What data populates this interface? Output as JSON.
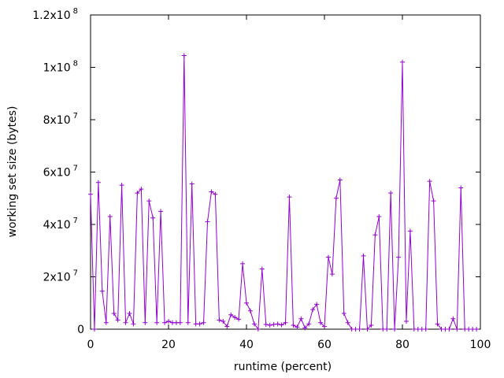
{
  "chart_data": {
    "type": "line",
    "xlabel": "runtime (percent)",
    "ylabel": "working set size (bytes)",
    "xlim": [
      0,
      100
    ],
    "ylim": [
      0,
      120000000
    ],
    "grid": false,
    "legend": "none",
    "x_ticks": [
      {
        "value": 0,
        "label": "0"
      },
      {
        "value": 20,
        "label": "20"
      },
      {
        "value": 40,
        "label": "40"
      },
      {
        "value": 60,
        "label": "60"
      },
      {
        "value": 80,
        "label": "80"
      },
      {
        "value": 100,
        "label": "100"
      }
    ],
    "y_ticks": [
      {
        "value": 0,
        "mantissa": "0",
        "exponent": ""
      },
      {
        "value": 20000000,
        "mantissa": "2x10",
        "exponent": "7"
      },
      {
        "value": 40000000,
        "mantissa": "4x10",
        "exponent": "7"
      },
      {
        "value": 60000000,
        "mantissa": "6x10",
        "exponent": "7"
      },
      {
        "value": 80000000,
        "mantissa": "8x10",
        "exponent": "7"
      },
      {
        "value": 100000000,
        "mantissa": "1x10",
        "exponent": "8"
      },
      {
        "value": 120000000,
        "mantissa": "1.2x10",
        "exponent": "8"
      }
    ],
    "series": [
      {
        "color": "#9400d3",
        "marker": "plus",
        "points": [
          [
            0,
            51500000
          ],
          [
            1,
            0
          ],
          [
            2,
            56000000
          ],
          [
            3,
            14500000
          ],
          [
            4,
            2500000
          ],
          [
            5,
            43000000
          ],
          [
            6,
            6000000
          ],
          [
            7,
            3500000
          ],
          [
            8,
            55000000
          ],
          [
            9,
            2500000
          ],
          [
            10,
            6000000
          ],
          [
            11,
            2000000
          ],
          [
            12,
            52000000
          ],
          [
            13,
            53500000
          ],
          [
            14,
            2500000
          ],
          [
            15,
            49000000
          ],
          [
            16,
            42500000
          ],
          [
            17,
            2500000
          ],
          [
            18,
            45000000
          ],
          [
            19,
            2500000
          ],
          [
            20,
            3000000
          ],
          [
            21,
            2500000
          ],
          [
            22,
            2500000
          ],
          [
            23,
            2500000
          ],
          [
            24,
            104500000
          ],
          [
            25,
            2500000
          ],
          [
            26,
            55500000
          ],
          [
            27,
            2000000
          ],
          [
            28,
            2000000
          ],
          [
            29,
            2500000
          ],
          [
            30,
            41000000
          ],
          [
            31,
            52500000
          ],
          [
            32,
            51500000
          ],
          [
            33,
            3500000
          ],
          [
            34,
            3000000
          ],
          [
            35,
            1000000
          ],
          [
            36,
            5500000
          ],
          [
            37,
            4500000
          ],
          [
            38,
            3800000
          ],
          [
            39,
            25000000
          ],
          [
            40,
            10000000
          ],
          [
            41,
            7000000
          ],
          [
            42,
            2000000
          ],
          [
            43,
            0
          ],
          [
            44,
            23000000
          ],
          [
            45,
            1800000
          ],
          [
            46,
            1500000
          ],
          [
            47,
            1800000
          ],
          [
            48,
            2000000
          ],
          [
            49,
            1600000
          ],
          [
            50,
            2500000
          ],
          [
            51,
            50500000
          ],
          [
            52,
            1500000
          ],
          [
            53,
            800000
          ],
          [
            54,
            4000000
          ],
          [
            55,
            500000
          ],
          [
            56,
            2000000
          ],
          [
            57,
            7500000
          ],
          [
            58,
            9500000
          ],
          [
            59,
            2500000
          ],
          [
            60,
            1000000
          ],
          [
            61,
            27500000
          ],
          [
            62,
            21000000
          ],
          [
            63,
            50000000
          ],
          [
            64,
            57000000
          ],
          [
            65,
            6000000
          ],
          [
            66,
            2500000
          ],
          [
            67,
            0
          ],
          [
            68,
            0
          ],
          [
            69,
            0
          ],
          [
            70,
            28000000
          ],
          [
            71,
            0
          ],
          [
            72,
            1500000
          ],
          [
            73,
            36000000
          ],
          [
            74,
            43000000
          ],
          [
            75,
            0
          ],
          [
            76,
            0
          ],
          [
            77,
            52000000
          ],
          [
            78,
            0
          ],
          [
            79,
            27500000
          ],
          [
            80,
            102000000
          ],
          [
            81,
            3000000
          ],
          [
            82,
            37500000
          ],
          [
            83,
            0
          ],
          [
            84,
            0
          ],
          [
            85,
            0
          ],
          [
            86,
            0
          ],
          [
            87,
            56500000
          ],
          [
            88,
            49000000
          ],
          [
            89,
            2000000
          ],
          [
            90,
            0
          ],
          [
            91,
            0
          ],
          [
            92,
            0
          ],
          [
            93,
            4000000
          ],
          [
            94,
            0
          ],
          [
            95,
            54000000
          ],
          [
            96,
            0
          ],
          [
            97,
            0
          ],
          [
            98,
            0
          ],
          [
            99,
            0
          ]
        ]
      }
    ]
  }
}
